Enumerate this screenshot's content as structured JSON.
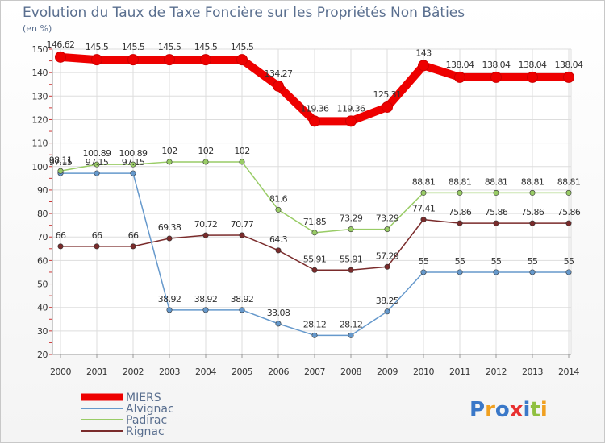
{
  "chart_data": {
    "type": "line",
    "title": "Evolution du Taux de Taxe Foncière sur les Propriétés Non Bâties",
    "subtitle": "(en %)",
    "xlabel": "",
    "ylabel": "",
    "ylim": [
      20,
      150
    ],
    "yticks": [
      20,
      30,
      40,
      50,
      60,
      70,
      80,
      90,
      100,
      110,
      120,
      130,
      140,
      150
    ],
    "grid": true,
    "legend": "bottom-left",
    "categories": [
      "2000",
      "2001",
      "2002",
      "2003",
      "2004",
      "2005",
      "2006",
      "2007",
      "2008",
      "2009",
      "2010",
      "2011",
      "2012",
      "2013",
      "2014"
    ],
    "series": [
      {
        "name": "MIERS",
        "color": "#ee0000",
        "values": [
          146.62,
          145.5,
          145.5,
          145.5,
          145.5,
          145.5,
          134.27,
          119.36,
          119.36,
          125.31,
          143,
          138.04,
          138.04,
          138.04,
          138.04
        ],
        "labels": [
          "146.62",
          "145.5",
          "145.5",
          "145.5",
          "145.5",
          "145.5",
          "134.27",
          "119.36",
          "119.36",
          "125.31",
          "143",
          "138.04",
          "138.04",
          "138.04",
          "138.04"
        ]
      },
      {
        "name": "Alvignac",
        "color": "#6699cc",
        "values": [
          97.15,
          97.15,
          97.15,
          38.92,
          38.92,
          38.92,
          33.08,
          28.12,
          28.12,
          38.25,
          55,
          55,
          55,
          55,
          55
        ],
        "labels": [
          "97.15",
          "97.15",
          "97.15",
          "38.92",
          "38.92",
          "38.92",
          "33.08",
          "28.12",
          "28.12",
          "38.25",
          "55",
          "55",
          "55",
          "55",
          "55"
        ]
      },
      {
        "name": "Padirac",
        "color": "#99cc66",
        "values": [
          98.11,
          100.89,
          100.89,
          102,
          102,
          102,
          81.6,
          71.85,
          73.29,
          73.29,
          88.81,
          88.81,
          88.81,
          88.81,
          88.81
        ],
        "labels": [
          "98.11",
          "100.89",
          "100.89",
          "102",
          "102",
          "102",
          "81.6",
          "71.85",
          "73.29",
          "73.29",
          "88.81",
          "88.81",
          "88.81",
          "88.81",
          "88.81"
        ]
      },
      {
        "name": "Rignac",
        "color": "#7a2b2b",
        "values": [
          66,
          66,
          66,
          69.38,
          70.72,
          70.77,
          64.3,
          55.91,
          55.91,
          57.29,
          77.41,
          75.86,
          75.86,
          75.86,
          75.86
        ],
        "labels": [
          "66",
          "66",
          "66",
          "69.38",
          "70.72",
          "70.77",
          "64.3",
          "55.91",
          "55.91",
          "57.29",
          "77.41",
          "75.86",
          "75.86",
          "75.86",
          "75.86"
        ]
      }
    ]
  },
  "logo": {
    "text": "Proxiti"
  }
}
